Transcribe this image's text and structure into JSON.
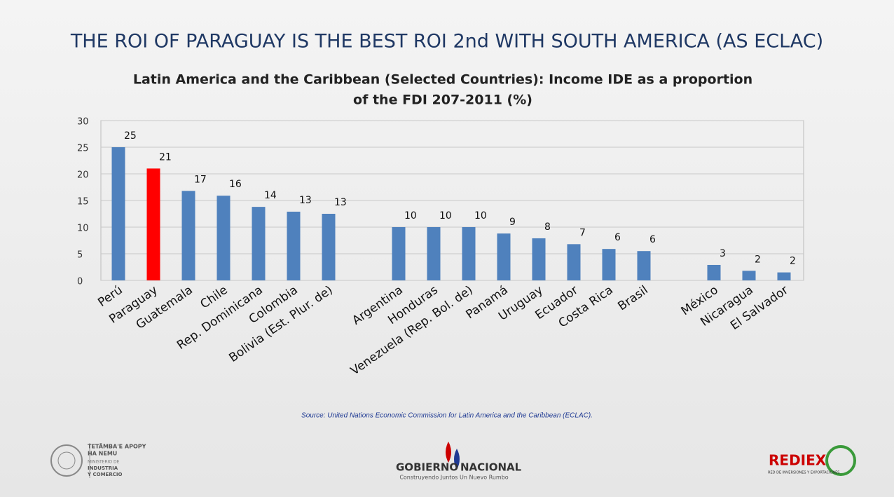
{
  "chart_data": {
    "type": "bar",
    "title": "THE ROI OF PARAGUAY IS THE BEST ROI 2nd WITH SOUTH AMERICA (AS ECLAC)",
    "subtitle_lines": [
      "Latin America and the Caribbean (Selected Countries): Income IDE as a proportion",
      "of the FDI 207-2011 (%)"
    ],
    "categories": [
      "Perú",
      "Paraguay",
      "Guatemala",
      "Chile",
      "Rep. Dominicana",
      "Colombia",
      "Bolivia (Est. Plur. de)",
      null,
      "Argentina",
      "Honduras",
      "Venezuela (Rep. Bol. de)",
      "Panamá",
      "Uruguay",
      "Ecuador",
      "Costa Rica",
      "Brasil",
      null,
      "México",
      "Nicaragua",
      "El Salvador"
    ],
    "values": [
      25,
      21,
      16.8,
      15.9,
      13.8,
      12.9,
      12.5,
      null,
      10,
      10,
      10,
      8.8,
      7.9,
      6.8,
      5.9,
      5.5,
      null,
      2.9,
      1.8,
      1.5
    ],
    "value_labels": [
      "25",
      "21",
      "17",
      "16",
      "14",
      "13",
      "13",
      null,
      "10",
      "10",
      "10",
      "9",
      "8",
      "7",
      "6",
      "6",
      null,
      "3",
      "2",
      "2"
    ],
    "colors": [
      "#4f81bd",
      "#ff0000",
      "#4f81bd",
      "#4f81bd",
      "#4f81bd",
      "#4f81bd",
      "#4f81bd",
      null,
      "#4f81bd",
      "#4f81bd",
      "#4f81bd",
      "#4f81bd",
      "#4f81bd",
      "#4f81bd",
      "#4f81bd",
      "#4f81bd",
      null,
      "#4f81bd",
      "#4f81bd",
      "#4f81bd"
    ],
    "ylim": [
      0,
      30
    ],
    "yticks": [
      0,
      5,
      10,
      15,
      20,
      25,
      30
    ],
    "grid": true,
    "source": "Source: United Nations Economic Commission for Latin America and the Caribbean (ECLAC)."
  },
  "footer": {
    "left_logo": [
      "TETÃMBA'E APOPY",
      "HA NEMU",
      "MINISTERIO DE",
      "INDUSTRIA",
      "Y COMERCIO"
    ],
    "center_logo": [
      "GOBIERNO",
      "NACIONAL",
      "Construyendo Juntos Un Nuevo Rumbo"
    ],
    "right_logo": [
      "REDIEX",
      "RED DE INVERSIONES Y EXPORTACIONES"
    ]
  }
}
